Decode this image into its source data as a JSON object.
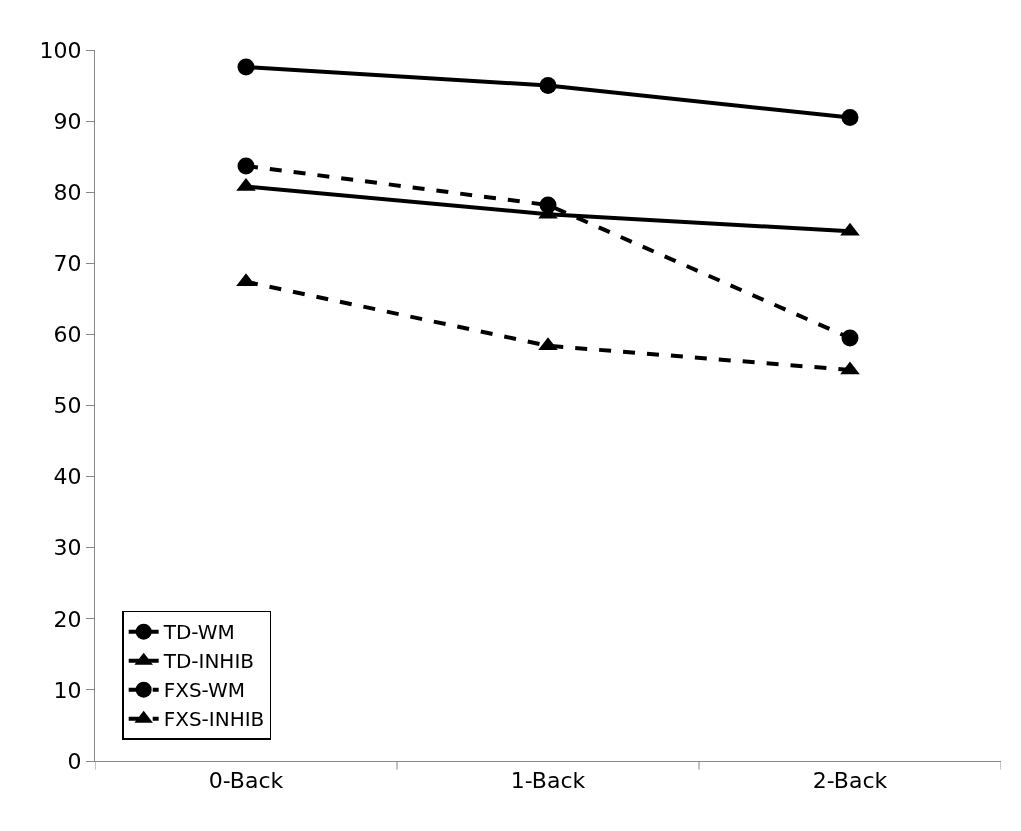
{
  "chart_data": {
    "type": "line",
    "categories": [
      "0-Back",
      "1-Back",
      "2-Back"
    ],
    "series": [
      {
        "name": "TD-WM",
        "color": "#000000",
        "values": [
          97.6,
          95.0,
          90.5
        ],
        "marker": "circle",
        "line_style": "solid"
      },
      {
        "name": "TD-INHIB",
        "color": "#000000",
        "values": [
          80.8,
          76.9,
          74.5
        ],
        "marker": "triangle",
        "line_style": "solid"
      },
      {
        "name": "FXS-WM",
        "color": "#000000",
        "values": [
          83.7,
          78.2,
          59.5
        ],
        "marker": "circle",
        "line_style": "dashed"
      },
      {
        "name": "FXS-INHIB",
        "color": "#000000",
        "values": [
          67.4,
          58.4,
          55.0
        ],
        "marker": "triangle",
        "line_style": "dashed"
      }
    ],
    "ylim": [
      0,
      100
    ],
    "yticks": [
      0,
      10,
      20,
      30,
      40,
      50,
      60,
      70,
      80,
      90,
      100
    ],
    "legend": "bottom left"
  }
}
